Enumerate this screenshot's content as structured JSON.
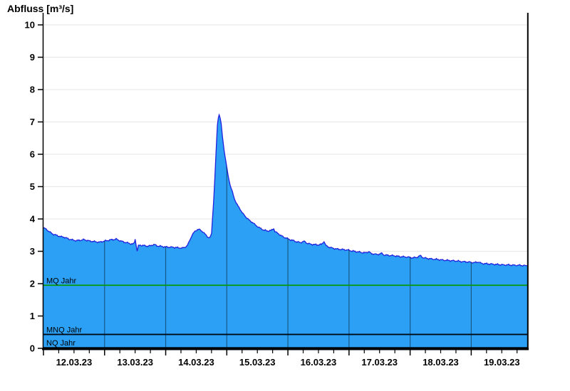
{
  "chart_data": {
    "type": "area",
    "title": "Abfluss [m³/s]",
    "ylabel": "Abfluss [m³/s]",
    "xlabel": "",
    "ylim": [
      0,
      10
    ],
    "y_ticks": [
      0,
      1,
      2,
      3,
      4,
      5,
      6,
      7,
      8,
      9,
      10
    ],
    "x_axis": {
      "tick_labels": [
        "12.03.23",
        "13.03.23",
        "14.03.23",
        "15.03.23",
        "16.03.23",
        "17.03.23",
        "18.03.23",
        "19.03.23"
      ],
      "hours_per_day": 24,
      "minor_tick_hours": 6,
      "range_hours": [
        0,
        190
      ]
    },
    "grid": {
      "horizontal": true,
      "vertical_day_lines_clipped_to_area": true
    },
    "legend": "none",
    "colors": {
      "area_fill": "#2BA0F5",
      "area_stroke": "#2121DE",
      "grid_line": "#E9E9E9",
      "day_grid_line": "rgba(0,0,0,0.45)",
      "axis": "#000000",
      "mq_line": "#089908",
      "mnq_line": "#000A14",
      "nq_line": "#000A14"
    },
    "reference_lines": [
      {
        "id": "mq",
        "label": "MQ Jahr",
        "value": 1.95
      },
      {
        "id": "mnq",
        "label": "MNQ Jahr",
        "value": 0.43
      },
      {
        "id": "nq",
        "label": "NQ Jahr",
        "value": 0.02
      }
    ],
    "series": [
      {
        "name": "Abfluss",
        "unit": "m³/s",
        "x_unit": "hours since 12.03.23 00:00",
        "points": [
          [
            0,
            3.72
          ],
          [
            1,
            3.69
          ],
          [
            2,
            3.62
          ],
          [
            3,
            3.57
          ],
          [
            4,
            3.52
          ],
          [
            5,
            3.5
          ],
          [
            6,
            3.47
          ],
          [
            7,
            3.45
          ],
          [
            8,
            3.44
          ],
          [
            9,
            3.41
          ],
          [
            10,
            3.38
          ],
          [
            11,
            3.36
          ],
          [
            12,
            3.34
          ],
          [
            13,
            3.33
          ],
          [
            14,
            3.34
          ],
          [
            15,
            3.35
          ],
          [
            16,
            3.36
          ],
          [
            17,
            3.34
          ],
          [
            18,
            3.32
          ],
          [
            19,
            3.31
          ],
          [
            20,
            3.3
          ],
          [
            21,
            3.29
          ],
          [
            22,
            3.28
          ],
          [
            23,
            3.3
          ],
          [
            24,
            3.32
          ],
          [
            25,
            3.33
          ],
          [
            26,
            3.35
          ],
          [
            27,
            3.36
          ],
          [
            28,
            3.37
          ],
          [
            28.5,
            3.38
          ],
          [
            29,
            3.36
          ],
          [
            30,
            3.33
          ],
          [
            31,
            3.3
          ],
          [
            32,
            3.28
          ],
          [
            33,
            3.26
          ],
          [
            34,
            3.24
          ],
          [
            35,
            3.22
          ],
          [
            35.7,
            3.26
          ],
          [
            36,
            3.38
          ],
          [
            36.4,
            3.18
          ],
          [
            36.8,
            3.01
          ],
          [
            37.3,
            3.17
          ],
          [
            38,
            3.19
          ],
          [
            39,
            3.18
          ],
          [
            40,
            3.17
          ],
          [
            41,
            3.16
          ],
          [
            42,
            3.17
          ],
          [
            43,
            3.2
          ],
          [
            43.6,
            3.21
          ],
          [
            44.5,
            3.17
          ],
          [
            45.5,
            3.16
          ],
          [
            46.5,
            3.15
          ],
          [
            47.5,
            3.14
          ],
          [
            48.5,
            3.13
          ],
          [
            50,
            3.13
          ],
          [
            51.5,
            3.12
          ],
          [
            53,
            3.11
          ],
          [
            54.5,
            3.1
          ],
          [
            55.5,
            3.12
          ],
          [
            56.5,
            3.18
          ],
          [
            57.5,
            3.35
          ],
          [
            58.5,
            3.52
          ],
          [
            59.5,
            3.62
          ],
          [
            60.5,
            3.67
          ],
          [
            61,
            3.68
          ],
          [
            61.8,
            3.65
          ],
          [
            62.6,
            3.6
          ],
          [
            63.4,
            3.54
          ],
          [
            64.2,
            3.47
          ],
          [
            64.9,
            3.42
          ],
          [
            65.5,
            3.44
          ],
          [
            66,
            3.55
          ],
          [
            66.3,
            3.9
          ],
          [
            66.8,
            4.5
          ],
          [
            67.3,
            5.25
          ],
          [
            67.8,
            6.1
          ],
          [
            68.3,
            6.9
          ],
          [
            68.7,
            7.15
          ],
          [
            69,
            7.22
          ],
          [
            69.4,
            7.12
          ],
          [
            69.8,
            6.95
          ],
          [
            70.3,
            6.55
          ],
          [
            70.9,
            6.15
          ],
          [
            71.5,
            5.85
          ],
          [
            72,
            5.6
          ],
          [
            72.5,
            5.35
          ],
          [
            73.3,
            5.05
          ],
          [
            74.2,
            4.84
          ],
          [
            75,
            4.62
          ],
          [
            75.8,
            4.48
          ],
          [
            77,
            4.33
          ],
          [
            78,
            4.2
          ],
          [
            79.5,
            4.06
          ],
          [
            81,
            3.95
          ],
          [
            82.3,
            3.88
          ],
          [
            83.6,
            3.79
          ],
          [
            85,
            3.72
          ],
          [
            86.4,
            3.66
          ],
          [
            87.9,
            3.63
          ],
          [
            89.3,
            3.64
          ],
          [
            90.4,
            3.7
          ],
          [
            90.9,
            3.61
          ],
          [
            92,
            3.56
          ],
          [
            93.2,
            3.49
          ],
          [
            94.3,
            3.44
          ],
          [
            95.4,
            3.41
          ],
          [
            96.8,
            3.36
          ],
          [
            98.2,
            3.33
          ],
          [
            99.6,
            3.29
          ],
          [
            101,
            3.27
          ],
          [
            102.4,
            3.31
          ],
          [
            103.5,
            3.25
          ],
          [
            105,
            3.22
          ],
          [
            106.3,
            3.21
          ],
          [
            107.7,
            3.2
          ],
          [
            109.1,
            3.21
          ],
          [
            110.2,
            3.3
          ],
          [
            111,
            3.17
          ],
          [
            112.5,
            3.12
          ],
          [
            114,
            3.09
          ],
          [
            115.3,
            3.07
          ],
          [
            116.7,
            3.06
          ],
          [
            118.1,
            3.05
          ],
          [
            119.5,
            3.04
          ],
          [
            121.2,
            3.01
          ],
          [
            122.8,
            2.99
          ],
          [
            124.5,
            2.97
          ],
          [
            126.2,
            2.95
          ],
          [
            127.9,
            2.99
          ],
          [
            128.6,
            2.93
          ],
          [
            129.6,
            2.92
          ],
          [
            131.2,
            2.9
          ],
          [
            132.9,
            2.94
          ],
          [
            133.6,
            2.89
          ],
          [
            134.6,
            2.88
          ],
          [
            136.3,
            2.87
          ],
          [
            138,
            2.86
          ],
          [
            139.6,
            2.84
          ],
          [
            141.3,
            2.83
          ],
          [
            143.3,
            2.82
          ],
          [
            144.9,
            2.8
          ],
          [
            146.6,
            2.81
          ],
          [
            148,
            2.87
          ],
          [
            149.1,
            2.8
          ],
          [
            150.8,
            2.78
          ],
          [
            152.8,
            2.76
          ],
          [
            154.7,
            2.75
          ],
          [
            156.7,
            2.73
          ],
          [
            158.6,
            2.72
          ],
          [
            160.6,
            2.71
          ],
          [
            162.5,
            2.7
          ],
          [
            164.5,
            2.68
          ],
          [
            167,
            2.67
          ],
          [
            169,
            2.65
          ],
          [
            171,
            2.67
          ],
          [
            171.8,
            2.63
          ],
          [
            172.9,
            2.62
          ],
          [
            174.9,
            2.61
          ],
          [
            176.8,
            2.6
          ],
          [
            178.8,
            2.59
          ],
          [
            180.8,
            2.58
          ],
          [
            182.7,
            2.58
          ],
          [
            184.7,
            2.57
          ],
          [
            186.7,
            2.57
          ],
          [
            188.6,
            2.56
          ],
          [
            190,
            2.55
          ]
        ]
      }
    ]
  }
}
